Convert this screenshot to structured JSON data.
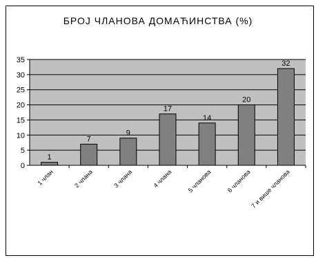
{
  "chart_data": {
    "type": "bar",
    "title": "БРОЈ ЧЛАНОВА ДОМАЋИНСТВА (%)",
    "xlabel": "",
    "ylabel": "",
    "categories": [
      "1 члан",
      "2 члана",
      "3 члана",
      "4 члана",
      "5 чланова",
      "6 чланова",
      "7 и више чланова"
    ],
    "values": [
      1,
      7,
      9,
      17,
      14,
      20,
      32
    ],
    "ylim": [
      0,
      35
    ],
    "yticks": [
      "0",
      "5",
      "10",
      "15",
      "20",
      "25",
      "30",
      "35"
    ],
    "grid": true,
    "colors": {
      "plot_area": "#c0c0c0",
      "bar": "#808080",
      "bar_stroke": "#000000"
    }
  }
}
